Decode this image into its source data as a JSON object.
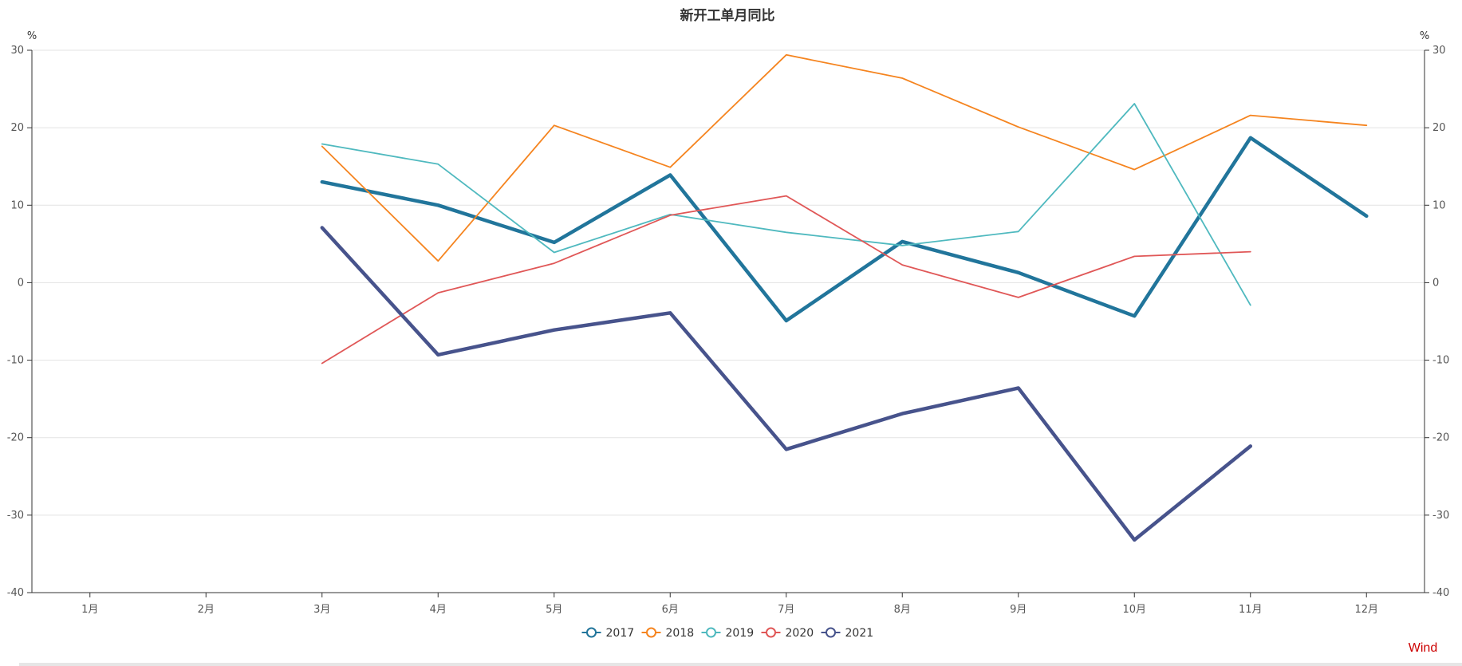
{
  "chart_data": {
    "type": "line",
    "title": "新开工单月同比",
    "y_unit_left": "%",
    "y_unit_right": "%",
    "ylim": [
      -40,
      30
    ],
    "y_ticks": [
      "30",
      "20",
      "10",
      "0",
      "-10",
      "-20",
      "-30",
      "-40"
    ],
    "y_tick_values": [
      30,
      20,
      10,
      0,
      -10,
      -20,
      -30,
      -40
    ],
    "categories": [
      "1月",
      "2月",
      "3月",
      "4月",
      "5月",
      "6月",
      "7月",
      "8月",
      "9月",
      "10月",
      "11月",
      "12月"
    ],
    "grid": true,
    "legend_position": "bottom-center",
    "source_label": "Wind",
    "series": [
      {
        "name": "2017",
        "color": "#21759b",
        "values": [
          null,
          null,
          13.0,
          10.0,
          5.2,
          13.9,
          -4.9,
          5.3,
          1.3,
          -4.3,
          18.7,
          8.6
        ]
      },
      {
        "name": "2018",
        "color": "#f5841f",
        "values": [
          null,
          null,
          17.6,
          2.8,
          20.3,
          14.9,
          29.4,
          26.4,
          20.1,
          14.6,
          21.6,
          20.3
        ]
      },
      {
        "name": "2019",
        "color": "#4fb9bf",
        "values": [
          null,
          null,
          17.9,
          15.3,
          3.9,
          8.8,
          6.5,
          4.8,
          6.6,
          23.1,
          -2.9,
          null
        ]
      },
      {
        "name": "2020",
        "color": "#e05757",
        "values": [
          null,
          null,
          -10.4,
          -1.3,
          2.5,
          8.7,
          11.2,
          2.3,
          -1.9,
          3.4,
          4.0,
          null
        ]
      },
      {
        "name": "2021",
        "color": "#47538c",
        "values": [
          null,
          null,
          7.1,
          -9.3,
          -6.1,
          -3.9,
          -21.5,
          -16.9,
          -13.6,
          -33.2,
          -21.1,
          null
        ]
      }
    ]
  }
}
